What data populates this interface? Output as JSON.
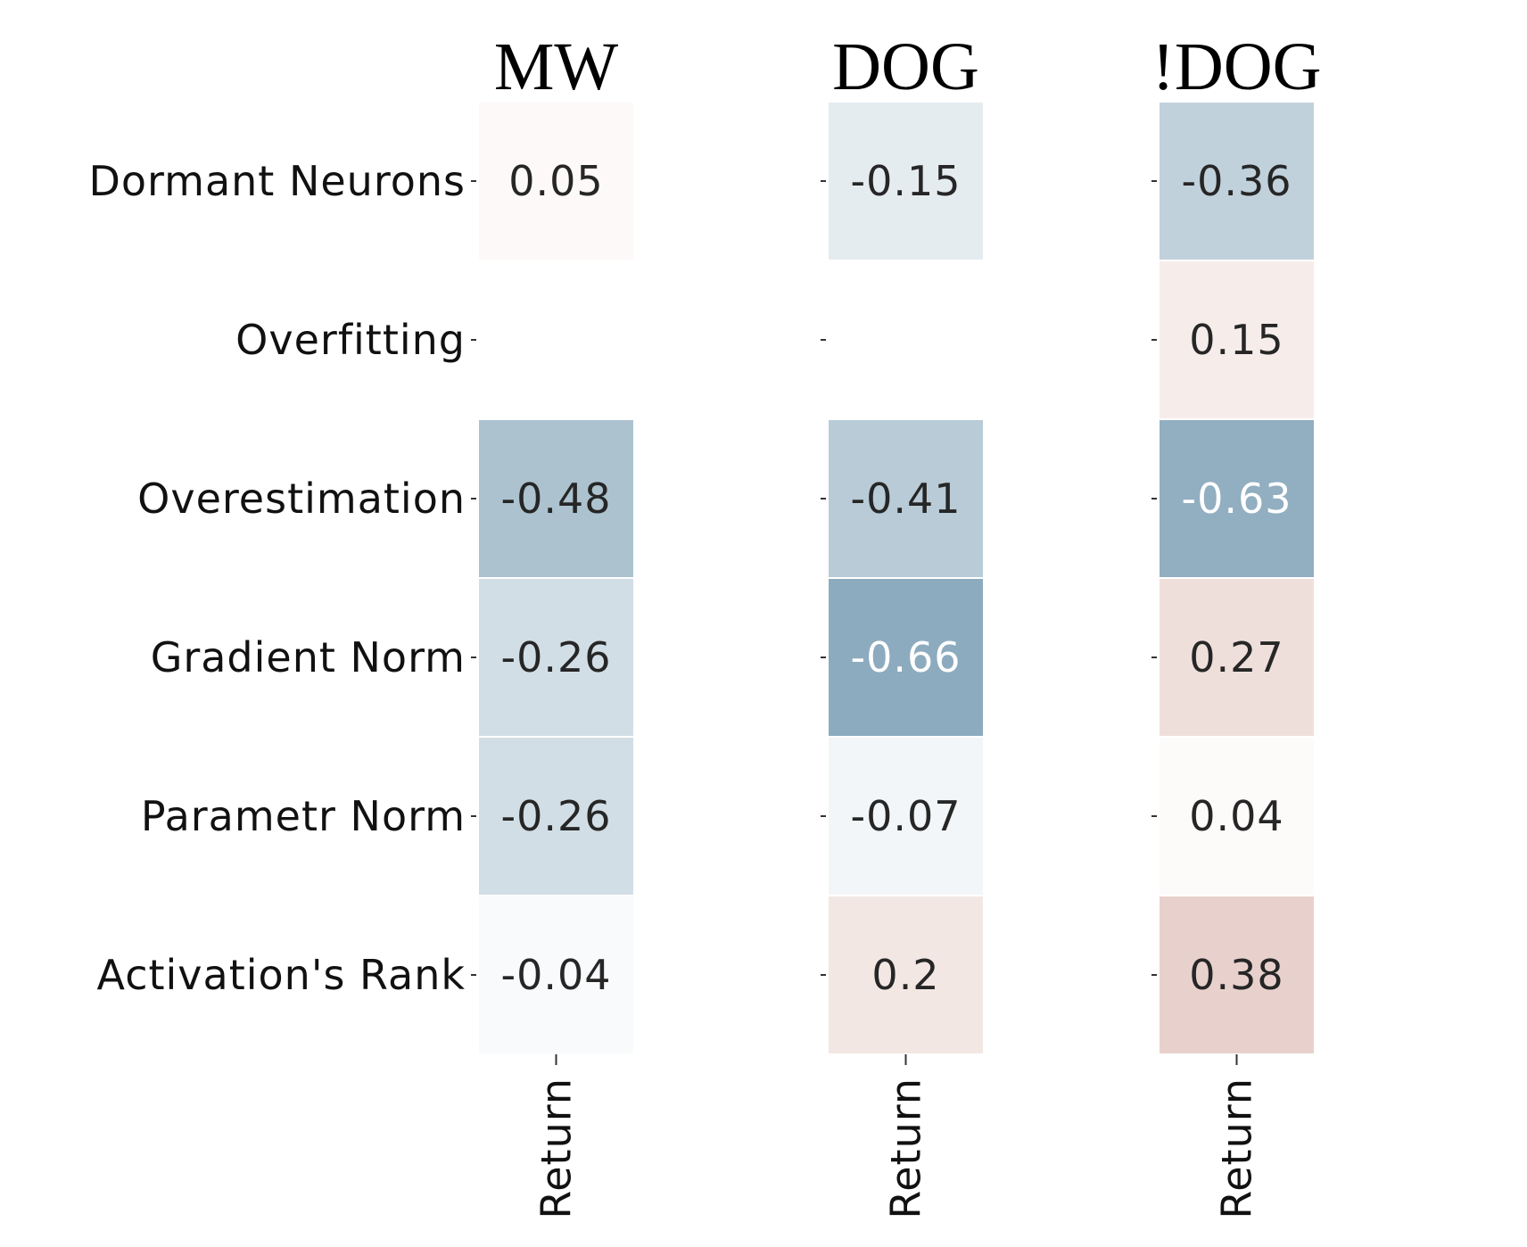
{
  "chart_data": {
    "type": "heatmap",
    "title": "",
    "row_labels": [
      "Dormant Neurons",
      "Overfitting",
      "Overestimation",
      "Gradient Norm",
      "Parametr Norm",
      "Activation's Rank"
    ],
    "value_range": [
      -1,
      1
    ],
    "colors": {
      "negative": "#527f9c",
      "positive": "#c2877a",
      "neutral": "#ffffff",
      "dark_text": "#262626",
      "light_text": "#ffffff"
    },
    "panels": [
      {
        "title": "MW",
        "column_label": "Return",
        "values": [
          0.05,
          null,
          -0.48,
          -0.26,
          -0.26,
          -0.04
        ],
        "labels": [
          "0.05",
          "",
          "-0.48",
          "-0.26",
          "-0.26",
          "-0.04"
        ]
      },
      {
        "title": "DOG",
        "column_label": "Return",
        "values": [
          -0.15,
          null,
          -0.41,
          -0.66,
          -0.07,
          0.2
        ],
        "labels": [
          "-0.15",
          "",
          "-0.41",
          "-0.66",
          "-0.07",
          "0.2"
        ]
      },
      {
        "title": "!DOG",
        "column_label": "Return",
        "values": [
          -0.36,
          0.15,
          -0.63,
          0.27,
          0.04,
          0.38
        ],
        "labels": [
          "-0.36",
          "0.15",
          "-0.63",
          "0.27",
          "0.04",
          "0.38"
        ]
      }
    ]
  }
}
